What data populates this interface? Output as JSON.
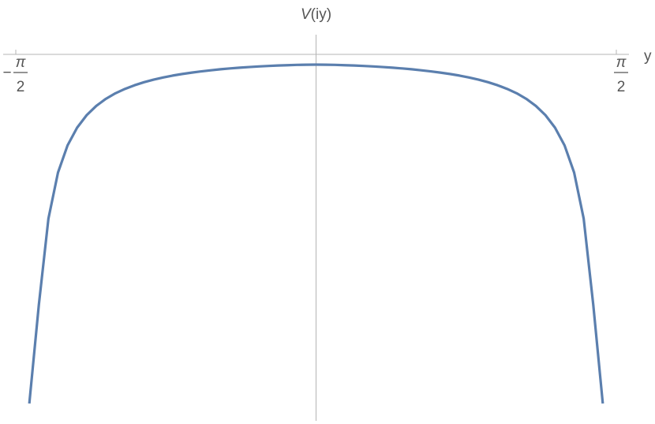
{
  "chart_data": {
    "type": "line",
    "title": "",
    "xlabel": "y",
    "ylabel_prefix": "V",
    "ylabel_suffix": "(iy)",
    "xlim": [
      -1.5708,
      1.5708
    ],
    "x_ticks": [
      {
        "value": -1.5708,
        "sign": "−",
        "numerator": "π",
        "denominator": "2"
      },
      {
        "value": 1.5708,
        "sign": "",
        "numerator": "π",
        "denominator": "2"
      }
    ],
    "series_color": "#5b7fae",
    "series": [
      {
        "x": [
          -1.5,
          -1.45,
          -1.4,
          -1.35,
          -1.3,
          -1.25,
          -1.2,
          -1.15,
          -1.1,
          -1.05,
          -1.0,
          -0.95,
          -0.9,
          -0.85,
          -0.8,
          -0.75,
          -0.7,
          -0.65,
          -0.6,
          -0.55,
          -0.5,
          -0.45,
          -0.4,
          -0.35,
          -0.3,
          -0.25,
          -0.2,
          -0.15,
          -0.1,
          -0.05,
          0.0,
          0.05,
          0.1,
          0.15,
          0.2,
          0.25,
          0.3,
          0.35,
          0.4,
          0.45,
          0.5,
          0.55,
          0.6,
          0.65,
          0.7,
          0.75,
          0.8,
          0.85,
          0.9,
          0.95,
          1.0,
          1.05,
          1.1,
          1.15,
          1.2,
          1.25,
          1.3,
          1.35,
          1.4,
          1.45,
          1.5
        ],
        "y": [
          -427.0,
          -307.7,
          -204.1,
          -148.6,
          -115.9,
          -94.5,
          -79.4,
          -68.3,
          -59.8,
          -53.1,
          -47.8,
          -43.4,
          -39.7,
          -36.6,
          -34.0,
          -31.7,
          -29.8,
          -28.1,
          -26.6,
          -25.3,
          -24.1,
          -23.1,
          -22.2,
          -21.4,
          -20.7,
          -20.1,
          -19.6,
          -19.2,
          -18.8,
          -18.6,
          -18.5,
          -18.6,
          -18.8,
          -19.2,
          -19.6,
          -20.1,
          -20.7,
          -21.4,
          -22.2,
          -23.1,
          -24.1,
          -25.3,
          -26.6,
          -28.1,
          -29.8,
          -31.7,
          -34.0,
          -36.6,
          -39.7,
          -43.4,
          -47.8,
          -53.1,
          -59.8,
          -68.3,
          -79.4,
          -94.5,
          -115.9,
          -148.6,
          -204.1,
          -307.7,
          -427.0
        ]
      }
    ]
  }
}
